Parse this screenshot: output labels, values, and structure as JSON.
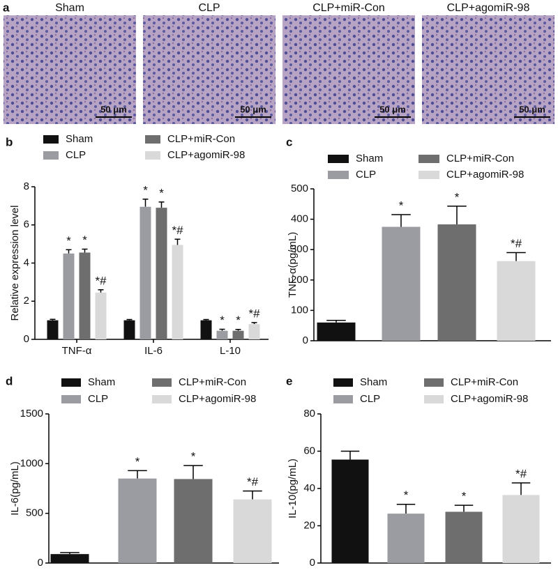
{
  "panel_labels": [
    "a",
    "b",
    "c",
    "d",
    "e"
  ],
  "images": {
    "labels": [
      "Sham",
      "CLP",
      "CLP+miR-Con",
      "CLP+agomiR-98"
    ],
    "scale_bar": "50 μm"
  },
  "chart_data": [
    {
      "type": "bar",
      "ylabel": "Relative expression level",
      "categories": [
        "TNF-α",
        "IL-6",
        "L-10"
      ],
      "ylim": [
        0,
        8
      ],
      "yticks": [
        0,
        2,
        4,
        6,
        8
      ],
      "series": [
        {
          "name": "Sham",
          "color": "#111111",
          "values": [
            1,
            1,
            1
          ],
          "errors": [
            0.05,
            0.04,
            0.04
          ],
          "annotations": [
            null,
            null,
            null
          ]
        },
        {
          "name": "CLP",
          "color": "#9b9ca1",
          "values": [
            4.5,
            6.95,
            0.45
          ],
          "errors": [
            0.2,
            0.4,
            0.08
          ],
          "annotations": [
            "*",
            "*",
            "*"
          ]
        },
        {
          "name": "CLP+miR-Con",
          "color": "#6e6e6e",
          "values": [
            4.55,
            6.9,
            0.45
          ],
          "errors": [
            0.18,
            0.3,
            0.07
          ],
          "annotations": [
            "*",
            "*",
            "*"
          ]
        },
        {
          "name": "CLP+agomiR-98",
          "color": "#d9d9d9",
          "values": [
            2.45,
            4.95,
            0.8
          ],
          "errors": [
            0.15,
            0.3,
            0.08
          ],
          "annotations": [
            "*#",
            "*#",
            "*#"
          ]
        }
      ]
    },
    {
      "type": "bar",
      "ylabel": "TNF-α(pg/mL)",
      "categories": [
        null
      ],
      "ylim": [
        0,
        500
      ],
      "yticks": [
        0,
        100,
        200,
        300,
        400,
        500
      ],
      "series": [
        {
          "name": "Sham",
          "color": "#111111",
          "values": [
            60
          ],
          "errors": [
            7
          ],
          "annotations": [
            null
          ]
        },
        {
          "name": "CLP",
          "color": "#9b9ca1",
          "values": [
            375
          ],
          "errors": [
            40
          ],
          "annotations": [
            "*"
          ]
        },
        {
          "name": "CLP+miR-Con",
          "color": "#6e6e6e",
          "values": [
            383
          ],
          "errors": [
            60
          ],
          "annotations": [
            "*"
          ]
        },
        {
          "name": "CLP+agomiR-98",
          "color": "#d9d9d9",
          "values": [
            262
          ],
          "errors": [
            28
          ],
          "annotations": [
            "*#"
          ]
        }
      ]
    },
    {
      "type": "bar",
      "ylabel": "IL-6(pg/mL)",
      "categories": [
        null
      ],
      "ylim": [
        0,
        1500
      ],
      "yticks": [
        0,
        500,
        1000,
        1500
      ],
      "series": [
        {
          "name": "Sham",
          "color": "#111111",
          "values": [
            90
          ],
          "errors": [
            15
          ],
          "annotations": [
            null
          ]
        },
        {
          "name": "CLP",
          "color": "#9b9ca1",
          "values": [
            850
          ],
          "errors": [
            80
          ],
          "annotations": [
            "*"
          ]
        },
        {
          "name": "CLP+miR-Con",
          "color": "#6e6e6e",
          "values": [
            845
          ],
          "errors": [
            135
          ],
          "annotations": [
            "*"
          ]
        },
        {
          "name": "CLP+agomiR-98",
          "color": "#d9d9d9",
          "values": [
            640
          ],
          "errors": [
            85
          ],
          "annotations": [
            "*#"
          ]
        }
      ]
    },
    {
      "type": "bar",
      "ylabel": "IL-10(pg/mL)",
      "categories": [
        null
      ],
      "ylim": [
        0,
        80
      ],
      "yticks": [
        0,
        20,
        40,
        60,
        80
      ],
      "series": [
        {
          "name": "Sham",
          "color": "#111111",
          "values": [
            55.5
          ],
          "errors": [
            4.5
          ],
          "annotations": [
            null
          ]
        },
        {
          "name": "CLP",
          "color": "#9b9ca1",
          "values": [
            26.5
          ],
          "errors": [
            5
          ],
          "annotations": [
            "*"
          ]
        },
        {
          "name": "CLP+miR-Con",
          "color": "#6e6e6e",
          "values": [
            27.5
          ],
          "errors": [
            3.5
          ],
          "annotations": [
            "*"
          ]
        },
        {
          "name": "CLP+agomiR-98",
          "color": "#d9d9d9",
          "values": [
            36.5
          ],
          "errors": [
            6.5
          ],
          "annotations": [
            "*#"
          ]
        }
      ]
    }
  ]
}
